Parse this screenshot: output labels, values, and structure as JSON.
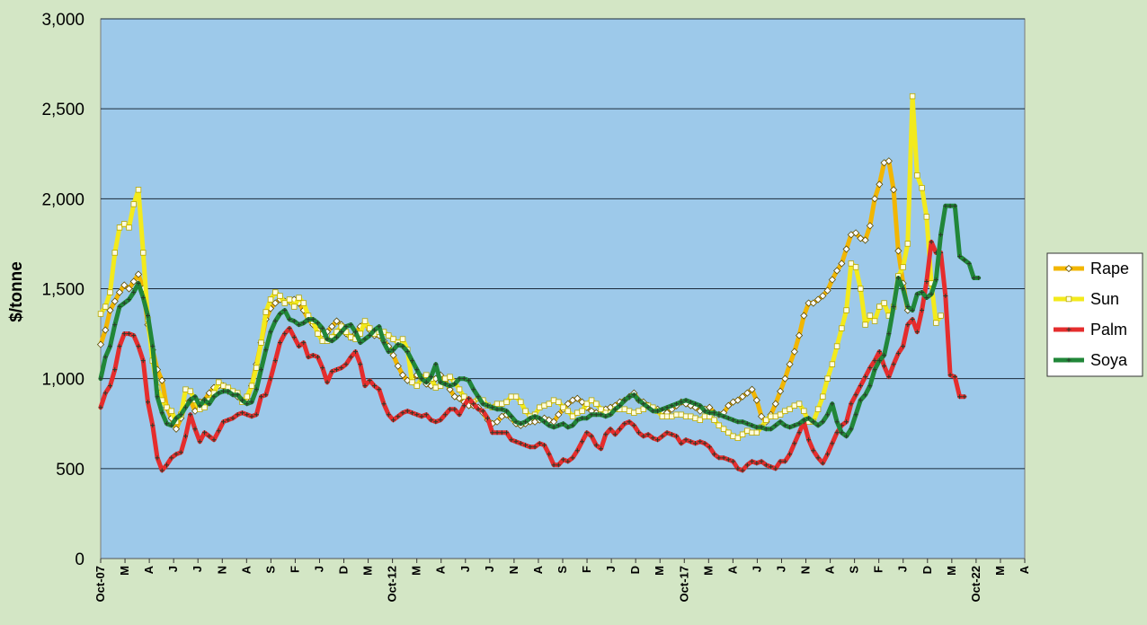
{
  "chart_data": {
    "type": "line",
    "ylabel": "$/tonne",
    "xlabel": "",
    "ylim": [
      0,
      3000
    ],
    "y_ticks": [
      "0",
      "500",
      "1,000",
      "1,500",
      "2,000",
      "2,500",
      "3,000"
    ],
    "x_tick_labels": [
      "Oct-07",
      "M",
      "A",
      "J",
      "J",
      "N",
      "A",
      "S",
      "F",
      "J",
      "D",
      "M",
      "Oct-12",
      "M",
      "A",
      "J",
      "J",
      "N",
      "A",
      "S",
      "F",
      "J",
      "D",
      "M",
      "Oct-17",
      "M",
      "A",
      "J",
      "J",
      "N",
      "A",
      "S",
      "F",
      "J",
      "D",
      "M",
      "Oct-22",
      "M",
      "A"
    ],
    "grid": "horizontal",
    "legend_position": "right",
    "series": [
      {
        "name": "Rape",
        "color": "#f2b600",
        "marker": "diamond",
        "values": [
          1190,
          1270,
          1380,
          1430,
          1480,
          1520,
          1500,
          1540,
          1580,
          1500,
          1300,
          1160,
          1050,
          990,
          840,
          780,
          720,
          780,
          860,
          880,
          820,
          870,
          880,
          920,
          950,
          960,
          960,
          930,
          920,
          900,
          880,
          890,
          960,
          1080,
          1200,
          1330,
          1390,
          1420,
          1440,
          1430,
          1430,
          1440,
          1420,
          1380,
          1330,
          1300,
          1270,
          1250,
          1260,
          1290,
          1320,
          1300,
          1250,
          1230,
          1250,
          1290,
          1310,
          1270,
          1240,
          1240,
          1210,
          1180,
          1130,
          1070,
          1020,
          990,
          1000,
          1020,
          1010,
          970,
          960,
          1000,
          1020,
          990,
          940,
          900,
          890,
          870,
          850,
          850,
          840,
          810,
          770,
          750,
          760,
          790,
          800,
          780,
          750,
          740,
          750,
          760,
          760,
          770,
          780,
          770,
          760,
          800,
          830,
          860,
          880,
          890,
          870,
          840,
          820,
          810,
          810,
          830,
          840,
          850,
          870,
          880,
          900,
          920,
          880,
          870,
          850,
          830,
          830,
          820,
          810,
          830,
          850,
          870,
          860,
          850,
          840,
          820,
          830,
          840,
          810,
          800,
          810,
          850,
          870,
          880,
          900,
          920,
          940,
          880,
          790,
          760,
          800,
          860,
          930,
          1000,
          1080,
          1150,
          1240,
          1350,
          1420,
          1420,
          1440,
          1460,
          1490,
          1550,
          1600,
          1640,
          1720,
          1800,
          1810,
          1780,
          1770,
          1850,
          2000,
          2080,
          2200,
          2210,
          2050,
          1710,
          1530,
          1380
        ]
      },
      {
        "name": "Sun",
        "color": "#f3ea1c",
        "marker": "square",
        "values": [
          1360,
          1400,
          1480,
          1700,
          1840,
          1860,
          1840,
          1970,
          2050,
          1700,
          1330,
          1100,
          950,
          880,
          840,
          820,
          760,
          800,
          940,
          930,
          880,
          830,
          840,
          880,
          920,
          980,
          960,
          950,
          930,
          920,
          870,
          900,
          960,
          1060,
          1200,
          1370,
          1440,
          1480,
          1460,
          1420,
          1440,
          1400,
          1450,
          1420,
          1350,
          1320,
          1250,
          1210,
          1210,
          1230,
          1260,
          1290,
          1260,
          1230,
          1220,
          1250,
          1320,
          1280,
          1250,
          1260,
          1260,
          1240,
          1220,
          1200,
          1220,
          1160,
          980,
          960,
          1000,
          1020,
          1000,
          950,
          960,
          1000,
          1010,
          980,
          940,
          900,
          880,
          870,
          890,
          880,
          850,
          840,
          860,
          860,
          870,
          900,
          900,
          870,
          820,
          790,
          800,
          840,
          850,
          860,
          880,
          870,
          840,
          820,
          790,
          810,
          820,
          860,
          880,
          860,
          830,
          810,
          810,
          830,
          830,
          830,
          820,
          810,
          820,
          830,
          850,
          840,
          820,
          790,
          790,
          790,
          800,
          800,
          790,
          790,
          780,
          770,
          790,
          790,
          770,
          740,
          720,
          700,
          680,
          670,
          690,
          710,
          700,
          700,
          730,
          770,
          790,
          790,
          800,
          820,
          830,
          850,
          860,
          820,
          760,
          760,
          830,
          900,
          1000,
          1080,
          1180,
          1280,
          1380,
          1640,
          1620,
          1500,
          1300,
          1350,
          1320,
          1400,
          1420,
          1350,
          1400,
          1570,
          1620,
          1750,
          2570,
          2130,
          2060,
          1900,
          1530,
          1310,
          1350
        ]
      },
      {
        "name": "Palm",
        "color": "#e52d2d",
        "marker": "cross",
        "values": [
          840,
          920,
          960,
          1050,
          1180,
          1250,
          1250,
          1240,
          1180,
          1100,
          870,
          740,
          560,
          490,
          520,
          560,
          580,
          590,
          680,
          800,
          720,
          650,
          700,
          680,
          660,
          710,
          760,
          770,
          780,
          800,
          810,
          800,
          790,
          800,
          900,
          910,
          1000,
          1100,
          1200,
          1250,
          1280,
          1230,
          1180,
          1200,
          1120,
          1130,
          1120,
          1060,
          980,
          1040,
          1050,
          1060,
          1080,
          1120,
          1150,
          1080,
          960,
          990,
          960,
          940,
          860,
          800,
          770,
          790,
          810,
          820,
          810,
          800,
          790,
          800,
          770,
          760,
          770,
          800,
          830,
          830,
          800,
          850,
          890,
          860,
          830,
          820,
          780,
          700,
          700,
          700,
          700,
          660,
          650,
          640,
          630,
          620,
          620,
          640,
          630,
          580,
          520,
          520,
          550,
          540,
          560,
          600,
          650,
          700,
          680,
          630,
          610,
          690,
          720,
          690,
          720,
          750,
          760,
          740,
          700,
          680,
          690,
          670,
          660,
          680,
          700,
          690,
          680,
          640,
          660,
          650,
          640,
          650,
          640,
          620,
          580,
          560,
          560,
          550,
          540,
          500,
          490,
          520,
          540,
          530,
          540,
          520,
          510,
          500,
          540,
          540,
          580,
          640,
          700,
          760,
          660,
          600,
          560,
          530,
          580,
          640,
          700,
          740,
          760,
          860,
          910,
          960,
          1010,
          1060,
          1100,
          1150,
          1070,
          1010,
          1080,
          1140,
          1180,
          1300,
          1330,
          1260,
          1380,
          1540,
          1760,
          1700,
          1700,
          1460,
          1020,
          1010,
          900,
          900
        ]
      },
      {
        "name": "Soya",
        "color": "#218739",
        "marker": "cross",
        "values": [
          1000,
          1120,
          1180,
          1300,
          1400,
          1420,
          1440,
          1480,
          1530,
          1450,
          1350,
          1180,
          900,
          810,
          750,
          740,
          780,
          800,
          840,
          880,
          900,
          850,
          880,
          860,
          900,
          920,
          930,
          930,
          910,
          910,
          880,
          860,
          870,
          940,
          1050,
          1160,
          1260,
          1320,
          1360,
          1380,
          1330,
          1320,
          1300,
          1310,
          1330,
          1330,
          1310,
          1280,
          1220,
          1210,
          1230,
          1260,
          1290,
          1300,
          1260,
          1200,
          1220,
          1240,
          1270,
          1290,
          1200,
          1150,
          1160,
          1190,
          1180,
          1150,
          1100,
          1050,
          1000,
          980,
          1010,
          1080,
          980,
          970,
          960,
          970,
          1000,
          1000,
          990,
          940,
          900,
          860,
          850,
          840,
          830,
          830,
          820,
          790,
          760,
          750,
          760,
          780,
          790,
          780,
          760,
          740,
          730,
          740,
          750,
          730,
          740,
          770,
          780,
          780,
          800,
          800,
          800,
          790,
          800,
          830,
          850,
          880,
          900,
          910,
          880,
          860,
          840,
          820,
          820,
          830,
          840,
          850,
          860,
          870,
          880,
          870,
          860,
          850,
          820,
          810,
          810,
          800,
          790,
          780,
          770,
          760,
          760,
          750,
          740,
          730,
          730,
          720,
          720,
          740,
          760,
          740,
          730,
          740,
          750,
          770,
          780,
          760,
          740,
          760,
          800,
          860,
          760,
          700,
          680,
          720,
          800,
          880,
          910,
          960,
          1050,
          1100,
          1130,
          1250,
          1400,
          1560,
          1500,
          1400,
          1380,
          1470,
          1480,
          1450,
          1470,
          1550,
          1800,
          1960,
          1960,
          1960,
          1680,
          1660,
          1640,
          1560,
          1560
        ]
      }
    ]
  }
}
